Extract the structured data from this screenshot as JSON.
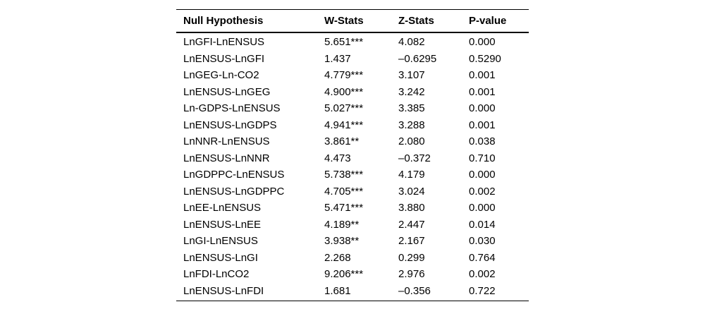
{
  "colors": {
    "text": "#000000",
    "background": "#ffffff",
    "rule": "#000000"
  },
  "table": {
    "headers": [
      "Null Hypothesis",
      "W-Stats",
      "Z-Stats",
      "P-value"
    ],
    "rows": [
      [
        "LnGFI-LnENSUS",
        "5.651***",
        "4.082",
        "0.000"
      ],
      [
        "LnENSUS-LnGFI",
        "1.437",
        "–0.6295",
        "0.5290"
      ],
      [
        "LnGEG-Ln-CO2",
        "4.779***",
        "3.107",
        "0.001"
      ],
      [
        "LnENSUS-LnGEG",
        "4.900***",
        "3.242",
        "0.001"
      ],
      [
        "Ln-GDPS-LnENSUS",
        "5.027***",
        "3.385",
        "0.000"
      ],
      [
        "LnENSUS-LnGDPS",
        "4.941***",
        "3.288",
        "0.001"
      ],
      [
        "LnNNR-LnENSUS",
        "3.861**",
        "2.080",
        "0.038"
      ],
      [
        "LnENSUS-LnNNR",
        "4.473",
        "–0.372",
        "0.710"
      ],
      [
        "LnGDPPC-LnENSUS",
        "5.738***",
        "4.179",
        "0.000"
      ],
      [
        "LnENSUS-LnGDPPC",
        "4.705***",
        "3.024",
        "0.002"
      ],
      [
        "LnEE-LnENSUS",
        "5.471***",
        "3.880",
        "0.000"
      ],
      [
        "LnENSUS-LnEE",
        "4.189**",
        "2.447",
        "0.014"
      ],
      [
        "LnGI-LnENSUS",
        "3.938**",
        "2.167",
        "0.030"
      ],
      [
        "LnENSUS-LnGI",
        "2.268",
        "0.299",
        "0.764"
      ],
      [
        "LnFDI-LnCO2",
        "9.206***",
        "2.976",
        "0.002"
      ],
      [
        "LnENSUS-LnFDI",
        "1.681",
        "–0.356",
        "0.722"
      ]
    ]
  }
}
